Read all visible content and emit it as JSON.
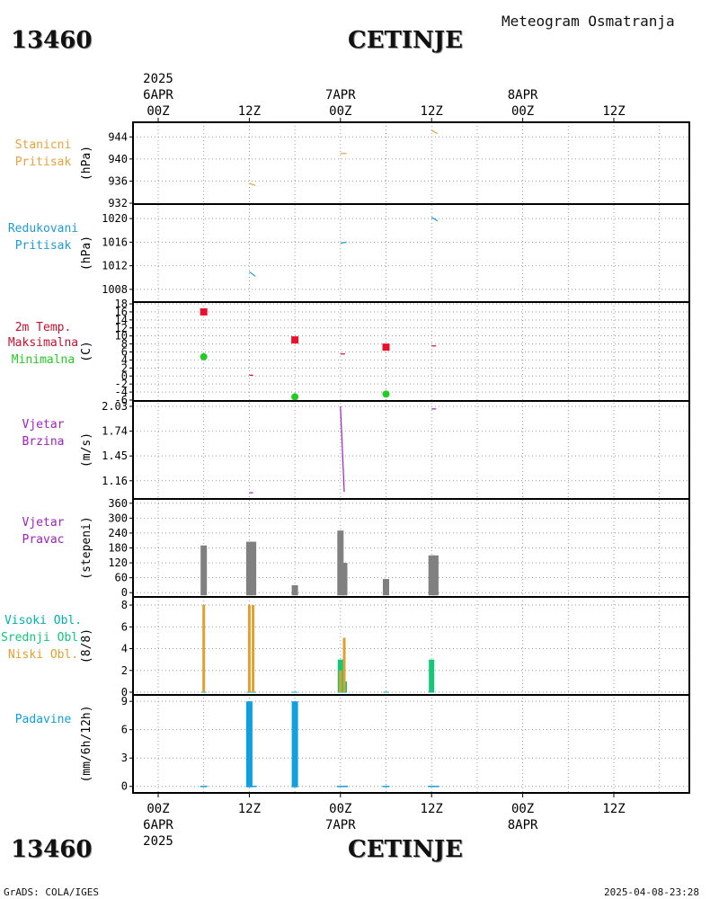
{
  "header": {
    "station_id": "13460",
    "station_name": "CETINJE",
    "product_title": "Meteogram Osmatranja"
  },
  "footer": {
    "source": "GrADS: COLA/IGES",
    "timestamp": "2025-04-08-23:28"
  },
  "colors": {
    "pressure": "#e8a33c",
    "reduced_pressure": "#1e9cd8",
    "tmax": "#e8102a",
    "tmin": "#22cc22",
    "tmax_label": "#c8102e",
    "wind_speed": "#a020c0",
    "wind_dir": "#808080",
    "high_cloud": "#00b0b0",
    "mid_cloud": "#10c878",
    "low_cloud": "#e0a030",
    "precip": "#10a0e0",
    "grid": "#999999"
  },
  "time_axis": {
    "top": {
      "year": "2025",
      "dates": [
        "6APR",
        "7APR",
        "8APR"
      ],
      "hours": [
        "00Z",
        "12Z",
        "00Z",
        "12Z",
        "00Z",
        "12Z"
      ]
    },
    "bottom": {
      "hours": [
        "00Z",
        "12Z",
        "00Z",
        "12Z",
        "00Z",
        "12Z"
      ],
      "dates": [
        "6APR",
        "7APR",
        "8APR"
      ],
      "year": "2025"
    }
  },
  "chart_data": [
    {
      "type": "line",
      "panel": "station_pressure",
      "label": [
        "Stanicni",
        "Pritisak"
      ],
      "ylabel": "(hPa)",
      "ylim": [
        932,
        946
      ],
      "yticks": [
        "944",
        "940",
        "936",
        "932"
      ],
      "ytick_values": [
        944,
        940,
        936,
        932
      ],
      "segments": [
        {
          "x": [
            12.0,
            12.8
          ],
          "y": [
            935.6,
            935.2
          ]
        },
        {
          "x": [
            24.0,
            24.8
          ],
          "y": [
            941.0,
            941.0
          ]
        },
        {
          "x": [
            36.0,
            36.8
          ],
          "y": [
            945.2,
            944.6
          ]
        }
      ]
    },
    {
      "type": "line",
      "panel": "reduced_pressure",
      "label": [
        "Redukovani",
        "Pritisak"
      ],
      "ylabel": "(hPa)",
      "ylim": [
        1006,
        1022
      ],
      "yticks": [
        "1020",
        "1016",
        "1012",
        "1008"
      ],
      "ytick_values": [
        1020,
        1016,
        1012,
        1008
      ],
      "segments": [
        {
          "x": [
            12.0,
            12.8
          ],
          "y": [
            1011.0,
            1010.2
          ]
        },
        {
          "x": [
            24.0,
            24.8
          ],
          "y": [
            1015.8,
            1016.0
          ]
        },
        {
          "x": [
            36.0,
            36.8
          ],
          "y": [
            1020.2,
            1019.6
          ]
        }
      ]
    },
    {
      "type": "scatter",
      "panel": "temperature_2m",
      "label": [
        "2m Temp.",
        "Maksimalna",
        "Minimalna"
      ],
      "ylabel": "(C)",
      "ylim": [
        -6,
        18
      ],
      "yticks": [
        "18",
        "16",
        "14",
        "12",
        "10",
        "8",
        "6",
        "4",
        "2",
        "0",
        "-2",
        "-4",
        "-6"
      ],
      "ytick_values": [
        18,
        16,
        14,
        12,
        10,
        8,
        6,
        4,
        2,
        0,
        -2,
        -4,
        -6
      ],
      "series": [
        {
          "name": "Maksimalna",
          "x": [
            6,
            18,
            30
          ],
          "y": [
            16.0,
            9.0,
            7.2
          ]
        },
        {
          "name": "Minimalna",
          "x": [
            6,
            18,
            30
          ],
          "y": [
            4.8,
            -5.2,
            -4.5
          ]
        }
      ],
      "segments": [
        {
          "x": [
            12.0,
            12.5
          ],
          "y": [
            0.2,
            0.2
          ]
        },
        {
          "x": [
            24.0,
            24.6
          ],
          "y": [
            5.5,
            5.5
          ]
        },
        {
          "x": [
            36.0,
            36.6
          ],
          "y": [
            7.5,
            7.5
          ]
        }
      ]
    },
    {
      "type": "line",
      "panel": "wind_speed",
      "label": [
        "Vjetar",
        "Brzina"
      ],
      "ylabel": "(m/s)",
      "ylim": [
        1.0,
        2.03
      ],
      "yticks": [
        "2.03",
        "1.74",
        "1.45",
        "1.16"
      ],
      "ytick_values": [
        2.03,
        1.74,
        1.45,
        1.16
      ],
      "segments": [
        {
          "x": [
            12.0,
            12.5
          ],
          "y": [
            1.02,
            1.02
          ]
        },
        {
          "x": [
            24.0,
            24.5
          ],
          "y": [
            2.03,
            1.03
          ]
        },
        {
          "x": [
            36.0,
            36.6
          ],
          "y": [
            2.0,
            2.0
          ]
        }
      ]
    },
    {
      "type": "bar",
      "panel": "wind_direction",
      "label": [
        "Vjetar",
        "Pravac"
      ],
      "ylabel": "(stepeni)",
      "ylim": [
        -10,
        370
      ],
      "yticks": [
        "360",
        "300",
        "240",
        "180",
        "120",
        "60",
        "0"
      ],
      "ytick_values": [
        360,
        300,
        240,
        180,
        120,
        60,
        0
      ],
      "x": [
        6,
        12,
        12.5,
        18,
        24,
        24.5,
        30,
        36,
        36.5
      ],
      "values": [
        190,
        205,
        205,
        30,
        250,
        120,
        55,
        150,
        150
      ]
    },
    {
      "type": "bar",
      "panel": "cloud_cover",
      "label": [
        "Visoki Obl.",
        "Srednji Obl.",
        "Niski Obl."
      ],
      "ylabel": "(8/8)",
      "ylim": [
        0,
        8.5
      ],
      "yticks": [
        "8",
        "6",
        "4",
        "2",
        "0"
      ],
      "ytick_values": [
        8,
        6,
        4,
        2,
        0
      ],
      "series": [
        {
          "name": "Visoki Obl.",
          "x": [
            6,
            12,
            12.5,
            18,
            24,
            24.5,
            30,
            36
          ],
          "values": [
            0,
            0,
            0,
            0,
            0,
            0,
            0,
            0
          ]
        },
        {
          "name": "Srednji Obl.",
          "x": [
            6,
            12,
            12.5,
            18,
            24,
            24.5,
            30,
            36
          ],
          "values": [
            0,
            0,
            0,
            0,
            3,
            1,
            0,
            3
          ]
        },
        {
          "name": "Niski Obl.",
          "x": [
            6,
            12,
            12.5,
            18,
            24,
            24.5,
            30,
            36
          ],
          "values": [
            8,
            8,
            8,
            0,
            2,
            5,
            0,
            0
          ]
        }
      ]
    },
    {
      "type": "bar",
      "panel": "precipitation",
      "label": [
        "Padavine"
      ],
      "ylabel": "(mm/6h/12h)",
      "ylim": [
        -0.5,
        9.3
      ],
      "yticks": [
        "9",
        "6",
        "3",
        "0"
      ],
      "ytick_values": [
        9,
        6,
        3,
        0
      ],
      "x": [
        6,
        12,
        12.5,
        18,
        24,
        24.5,
        30,
        36,
        36.5
      ],
      "values": [
        0,
        9,
        0,
        9,
        0,
        0,
        0,
        0,
        0
      ]
    }
  ]
}
